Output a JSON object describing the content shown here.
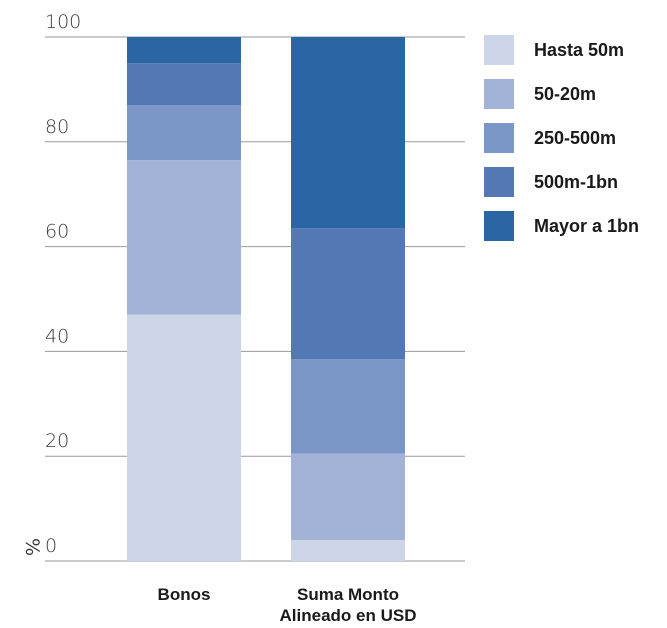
{
  "chart_data": {
    "type": "bar",
    "stacked": true,
    "categories": [
      "Bonos",
      "Suma Monto Alineado en USD"
    ],
    "category_lines": [
      [
        "Bonos"
      ],
      [
        "Suma Monto",
        "Alineado en USD"
      ]
    ],
    "series": [
      {
        "name": "Hasta 50m",
        "color": "#cdd5e8",
        "values": [
          47,
          4
        ]
      },
      {
        "name": "50-20m",
        "color": "#a3b3d8",
        "values": [
          29.5,
          16.5
        ]
      },
      {
        "name": "250-500m",
        "color": "#7b97c8",
        "values": [
          10.5,
          18
        ]
      },
      {
        "name": "500m-1bn",
        "color": "#5378b3",
        "values": [
          8,
          25
        ]
      },
      {
        "name": "Mayor a 1bn",
        "color": "#2966a3",
        "values": [
          5,
          36.5
        ]
      }
    ],
    "yticks": [
      0,
      20,
      40,
      60,
      80,
      100
    ],
    "ylim": [
      0,
      100
    ],
    "ylabel": "%",
    "title": "",
    "xlabel": "",
    "grid": true,
    "legend_position": "right"
  }
}
